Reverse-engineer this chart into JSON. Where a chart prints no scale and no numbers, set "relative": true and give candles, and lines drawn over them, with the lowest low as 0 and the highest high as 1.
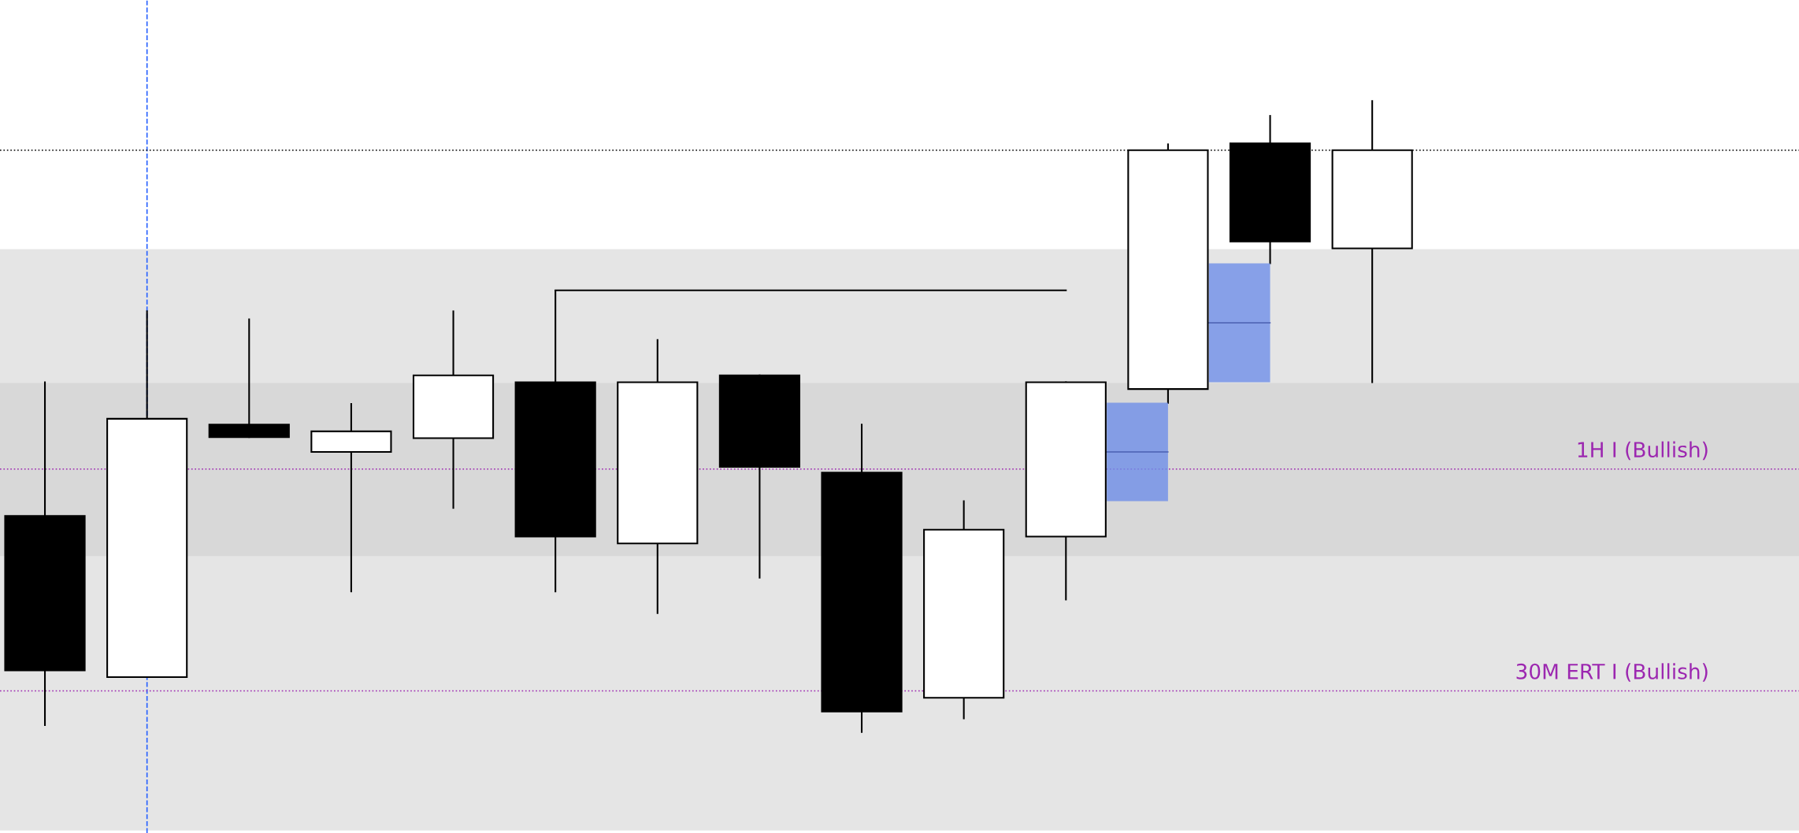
{
  "chart_data": {
    "type": "candlestick",
    "relative": true,
    "categories": [
      null,
      null,
      null,
      null,
      null,
      null,
      null,
      null,
      null,
      null,
      null,
      null,
      null,
      null
    ],
    "ohlc": [
      [
        0.3424,
        0.5543,
        0.0109,
        0.0978
      ],
      [
        0.087,
        0.6667,
        0.087,
        0.4964
      ],
      [
        0.4873,
        0.654,
        0.4674,
        0.4674
      ],
      [
        0.4438,
        0.5199,
        0.2228,
        0.4764
      ],
      [
        0.4656,
        0.6667,
        0.3551,
        0.5652
      ],
      [
        0.5543,
        0.6993,
        0.2228,
        0.3098
      ],
      [
        0.2989,
        0.6214,
        0.1884,
        0.5543
      ],
      [
        0.5652,
        0.5652,
        0.2446,
        0.4203
      ],
      [
        0.4112,
        0.4873,
        0.0,
        0.0326
      ],
      [
        0.0543,
        0.3659,
        0.0217,
        0.3207
      ],
      [
        0.3098,
        0.5543,
        0.2101,
        0.5543
      ],
      [
        0.5435,
        0.9312,
        0.5217,
        0.9221
      ],
      [
        0.933,
        0.9764,
        0.7428,
        0.7772
      ],
      [
        0.7663,
        1.0,
        0.5543,
        0.9221
      ]
    ],
    "colors": [
      "#000000",
      "#ffffff",
      "#000000",
      "#ffffff",
      "#ffffff",
      "#000000",
      "#ffffff",
      "#000000",
      "#000000",
      "#ffffff",
      "#ffffff",
      "#ffffff",
      "#000000",
      "#ffffff"
    ],
    "series": [
      {
        "type": "line",
        "color": "#000000",
        "values": [
          null,
          null,
          null,
          null,
          null,
          0.7,
          0.7,
          0.7,
          0.7,
          0.7,
          0.7,
          null,
          null,
          null
        ]
      }
    ],
    "bands": [
      {
        "axis": "y",
        "from": -0.156,
        "to": 0.765,
        "color": "#cccccc"
      },
      {
        "axis": "y",
        "from": 0.279,
        "to": 0.553,
        "color": "#cccccc"
      }
    ],
    "ref_lines": [
      {
        "axis": "y",
        "value": 0.922,
        "color": "#000000",
        "line_style": "dotted"
      },
      {
        "axis": "y",
        "value": 0.4167,
        "label": "1H I (Bullish)",
        "color": "#9c27b0",
        "line_style": "dotted"
      },
      {
        "axis": "y",
        "value": 0.0652,
        "label": "30M ERT I (Bullish)",
        "color": "#9c27b0",
        "line_style": "dotted"
      }
    ],
    "grid": false,
    "legend": false
  }
}
